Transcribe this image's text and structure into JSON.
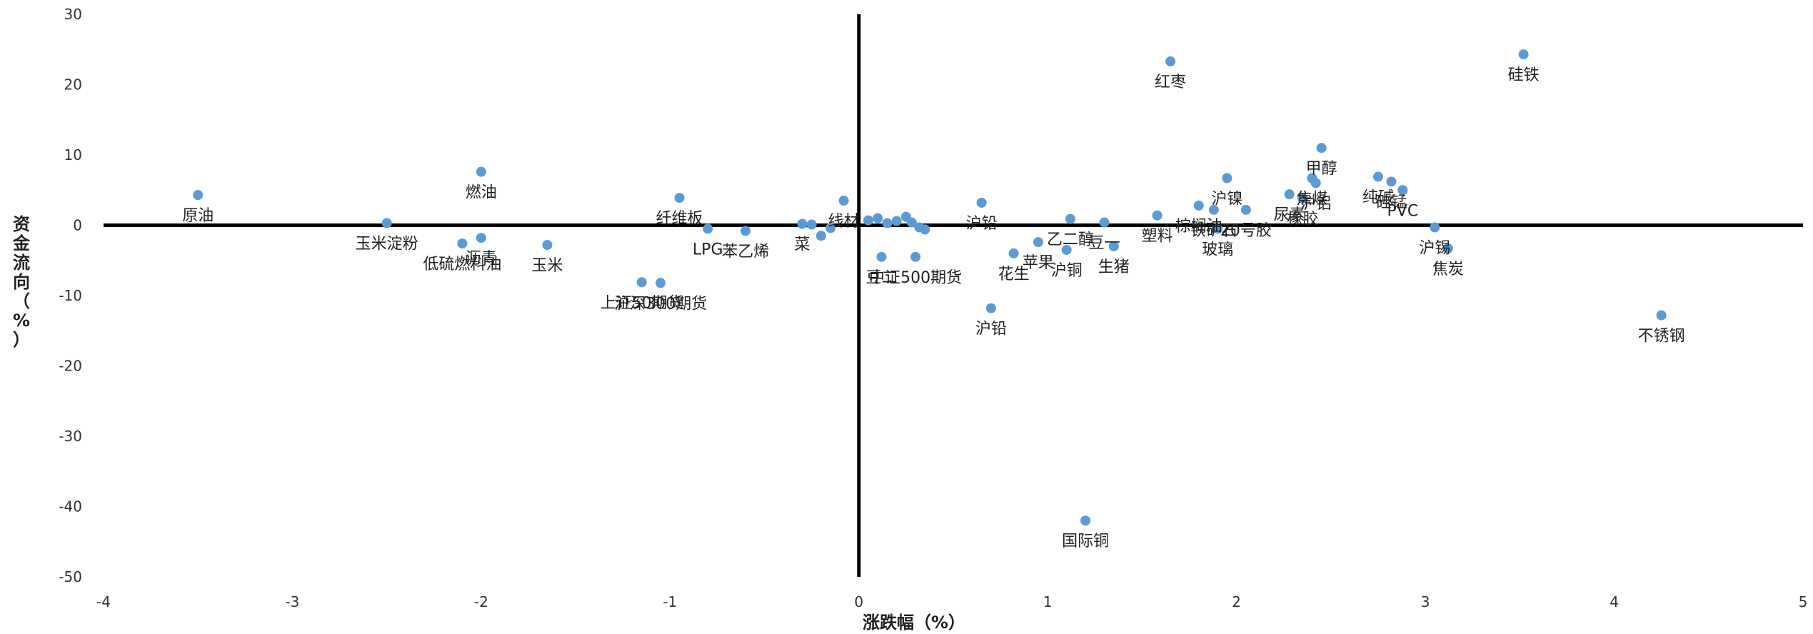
{
  "chart_data": {
    "type": "scatter",
    "title": "",
    "xlabel": "涨跌幅（%）",
    "ylabel": "资金流向（%）",
    "xlim": [
      -4,
      5
    ],
    "ylim": [
      -50,
      30
    ],
    "x_ticks": [
      -4,
      -3,
      -2,
      -1,
      0,
      1,
      2,
      3,
      4,
      5
    ],
    "y_ticks": [
      30,
      20,
      10,
      0,
      -10,
      -20,
      -30,
      -40,
      -50
    ],
    "grid": false,
    "marker_color": "#5b9bd5",
    "axis_color": "#000000",
    "points": [
      {
        "x": -3.5,
        "y": 4.3,
        "label": "原油"
      },
      {
        "x": -2.5,
        "y": 0.3,
        "label": "玉米淀粉"
      },
      {
        "x": -2.1,
        "y": -2.6,
        "label": "低硫燃料油"
      },
      {
        "x": -2.0,
        "y": 7.6,
        "label": "燃油"
      },
      {
        "x": -2.0,
        "y": -1.8,
        "label": "沥青"
      },
      {
        "x": -1.65,
        "y": -2.8,
        "label": "玉米"
      },
      {
        "x": -1.15,
        "y": -8.1,
        "label": "上证50期货"
      },
      {
        "x": -1.05,
        "y": -8.2,
        "label": "沪深300期货"
      },
      {
        "x": -0.95,
        "y": 3.9,
        "label": "纤维板"
      },
      {
        "x": -0.8,
        "y": -0.5,
        "label": "LPG"
      },
      {
        "x": -0.6,
        "y": -0.8,
        "label": "苯乙烯"
      },
      {
        "x": -0.3,
        "y": 0.2,
        "label": "菜"
      },
      {
        "x": -0.25,
        "y": 0.1,
        "label": ""
      },
      {
        "x": -0.2,
        "y": -1.5,
        "label": ""
      },
      {
        "x": -0.15,
        "y": -0.4,
        "label": ""
      },
      {
        "x": -0.08,
        "y": 3.5,
        "label": "线材"
      },
      {
        "x": 0.05,
        "y": 0.7,
        "label": ""
      },
      {
        "x": 0.1,
        "y": 1.0,
        "label": ""
      },
      {
        "x": 0.15,
        "y": 0.3,
        "label": ""
      },
      {
        "x": 0.2,
        "y": 0.6,
        "label": ""
      },
      {
        "x": 0.25,
        "y": 1.2,
        "label": ""
      },
      {
        "x": 0.28,
        "y": 0.4,
        "label": ""
      },
      {
        "x": 0.32,
        "y": -0.3,
        "label": ""
      },
      {
        "x": 0.35,
        "y": -0.6,
        "label": ""
      },
      {
        "x": 0.12,
        "y": -4.5,
        "label": "豆二"
      },
      {
        "x": 0.3,
        "y": -4.5,
        "label": "中证500期货"
      },
      {
        "x": 0.65,
        "y": 3.2,
        "label": "沪铅"
      },
      {
        "x": 0.7,
        "y": -11.8,
        "label": "沪铅"
      },
      {
        "x": 0.82,
        "y": -4.0,
        "label": "花生"
      },
      {
        "x": 0.95,
        "y": -2.4,
        "label": "苹果"
      },
      {
        "x": 1.1,
        "y": -3.5,
        "label": "沪铜"
      },
      {
        "x": 1.12,
        "y": 0.9,
        "label": "乙二醇"
      },
      {
        "x": 1.2,
        "y": -42.0,
        "label": "国际铜"
      },
      {
        "x": 1.3,
        "y": 0.4,
        "label": "豆一"
      },
      {
        "x": 1.35,
        "y": -3.0,
        "label": "生猪"
      },
      {
        "x": 1.58,
        "y": 1.4,
        "label": "塑料"
      },
      {
        "x": 1.65,
        "y": 23.3,
        "label": "红枣"
      },
      {
        "x": 1.8,
        "y": 2.8,
        "label": "棕榈油"
      },
      {
        "x": 1.88,
        "y": 2.2,
        "label": "铁矿石"
      },
      {
        "x": 1.9,
        "y": -0.5,
        "label": "玻璃"
      },
      {
        "x": 1.95,
        "y": 6.7,
        "label": "沪镍"
      },
      {
        "x": 2.05,
        "y": 2.2,
        "label": "20号胶"
      },
      {
        "x": 2.28,
        "y": 4.4,
        "label": "尿素"
      },
      {
        "x": 2.35,
        "y": 3.8,
        "label": "橡胶"
      },
      {
        "x": 2.4,
        "y": 6.7,
        "label": "焦煤"
      },
      {
        "x": 2.42,
        "y": 6.0,
        "label": "沪铝"
      },
      {
        "x": 2.45,
        "y": 11.0,
        "label": "甲醇"
      },
      {
        "x": 2.75,
        "y": 6.9,
        "label": "纯碱"
      },
      {
        "x": 2.82,
        "y": 6.2,
        "label": "硅锰"
      },
      {
        "x": 2.88,
        "y": 5.0,
        "label": "PVC"
      },
      {
        "x": 3.05,
        "y": -0.3,
        "label": "沪锡"
      },
      {
        "x": 3.12,
        "y": -3.3,
        "label": "焦炭"
      },
      {
        "x": 3.52,
        "y": 24.3,
        "label": "硅铁"
      },
      {
        "x": 4.25,
        "y": -12.8,
        "label": "不锈钢"
      }
    ]
  }
}
